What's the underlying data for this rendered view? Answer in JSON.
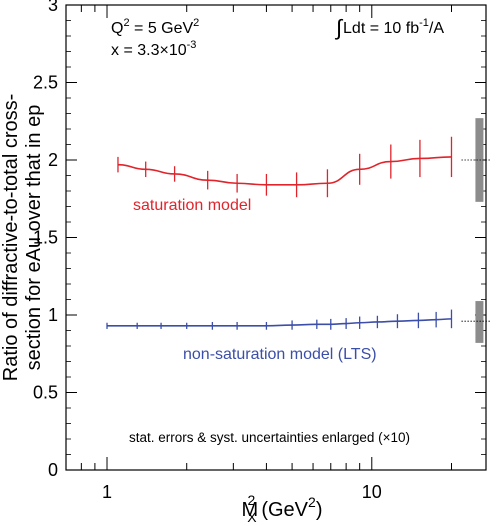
{
  "chart_data": {
    "type": "line",
    "xlabel": "M",
    "xlabel_sub": "X",
    "xlabel_sup": "2",
    "xlabel_units": "(GeV",
    "xlabel_units_sup": "2",
    "xlabel_units_close": ")",
    "ylabel_line1": "Ratio of diffractive-to-total cross-",
    "ylabel_line2": "section for eAu over that in ep",
    "x_scale": "log",
    "xlim": [
      0.7,
      27
    ],
    "ylim": [
      0,
      3
    ],
    "x_ticks": [
      {
        "value": 1,
        "label": "1"
      },
      {
        "value": 10,
        "label": "10"
      }
    ],
    "y_ticks": [
      {
        "value": 0,
        "label": "0"
      },
      {
        "value": 0.5,
        "label": "0.5"
      },
      {
        "value": 1,
        "label": "1"
      },
      {
        "value": 1.5,
        "label": "1.5"
      },
      {
        "value": 2,
        "label": "2"
      },
      {
        "value": 2.5,
        "label": "2.5"
      },
      {
        "value": 3,
        "label": "3"
      }
    ],
    "annotations": {
      "q2_prefix": "Q",
      "q2_sup": "2",
      "q2_rest": " = 5 GeV",
      "q2_unit_sup": "2",
      "x_prefix": "x = 3.3×10",
      "x_sup": "-3",
      "lumi_integral": "∫",
      "lumi_main": "Ldt = 10 fb",
      "lumi_sup": "-1",
      "lumi_rest": "/A",
      "footnote": "stat. errors & syst. uncertainties enlarged (×10)"
    },
    "series": [
      {
        "name": "saturation model",
        "color": "#e0242b",
        "x": [
          1.1,
          1.4,
          1.8,
          2.4,
          3.1,
          4.0,
          5.2,
          6.8,
          9.0,
          11.8,
          15.2,
          20.0
        ],
        "y": [
          1.97,
          1.94,
          1.91,
          1.87,
          1.85,
          1.84,
          1.84,
          1.85,
          1.94,
          1.99,
          2.01,
          2.02
        ],
        "err": [
          0.05,
          0.05,
          0.05,
          0.06,
          0.06,
          0.07,
          0.08,
          0.09,
          0.1,
          0.11,
          0.12,
          0.13
        ]
      },
      {
        "name": "non-saturation model (LTS)",
        "color": "#3b4ea8",
        "x": [
          1.0,
          1.3,
          1.6,
          2.0,
          2.5,
          3.1,
          4.0,
          5.0,
          6.2,
          7.0,
          8.0,
          9.0,
          10.5,
          12.5,
          15.0,
          17.5,
          20.0
        ],
        "y": [
          0.93,
          0.93,
          0.93,
          0.93,
          0.93,
          0.93,
          0.93,
          0.935,
          0.94,
          0.94,
          0.945,
          0.95,
          0.955,
          0.96,
          0.965,
          0.97,
          0.975
        ],
        "err": [
          0.02,
          0.02,
          0.02,
          0.02,
          0.025,
          0.025,
          0.025,
          0.03,
          0.03,
          0.035,
          0.035,
          0.04,
          0.04,
          0.045,
          0.05,
          0.05,
          0.06
        ]
      }
    ],
    "systematics": [
      {
        "center": 2.0,
        "low": 1.73,
        "high": 2.27,
        "color": "#8c8c8c"
      },
      {
        "center": 0.96,
        "low": 0.82,
        "high": 1.09,
        "color": "#8c8c8c"
      }
    ]
  }
}
